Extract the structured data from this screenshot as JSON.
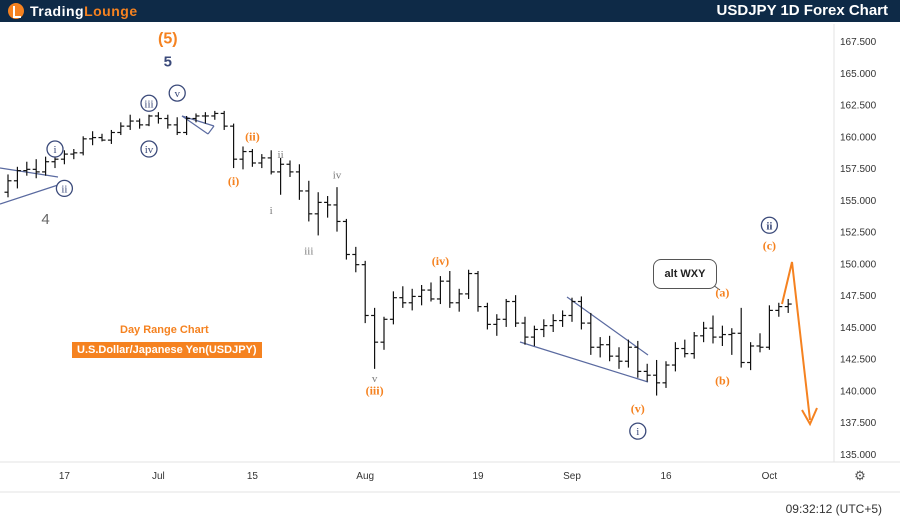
{
  "brand": {
    "name_part1": "Trading",
    "name_part2": "Lounge"
  },
  "title": "USDJPY 1D Forex Chart",
  "captions": {
    "range": "Day Range Chart",
    "instrument": "U.S.Dollar/Japanese Yen(USDJPY)"
  },
  "callout": "alt WXY",
  "clock": "09:32:12 (UTC+5)",
  "colors": {
    "header": "#0e2a47",
    "orange": "#f58220",
    "navy_label": "#3b4a7a",
    "grey_label": "#7a7a7a",
    "price": "#111111"
  },
  "chart_data": {
    "type": "ohlc",
    "y_axis": {
      "min": 135.0,
      "max": 167.5,
      "ticks": [
        "135.000",
        "137.500",
        "140.000",
        "142.500",
        "145.000",
        "147.500",
        "150.000",
        "152.500",
        "155.000",
        "157.500",
        "160.000",
        "162.500",
        "165.000",
        "167.500"
      ]
    },
    "x_axis": {
      "ticks": [
        {
          "label": "17",
          "i": 6
        },
        {
          "label": "Jul",
          "i": 16
        },
        {
          "label": "15",
          "i": 26
        },
        {
          "label": "Aug",
          "i": 38
        },
        {
          "label": "19",
          "i": 50
        },
        {
          "label": "Sep",
          "i": 60
        },
        {
          "label": "16",
          "i": 70
        },
        {
          "label": "Oct",
          "i": 81
        }
      ]
    },
    "bars": [
      [
        155.6,
        157.0,
        155.2,
        156.5
      ],
      [
        156.5,
        157.6,
        155.9,
        157.3
      ],
      [
        157.3,
        158.0,
        156.9,
        157.4
      ],
      [
        157.4,
        158.2,
        156.7,
        157.2
      ],
      [
        157.2,
        158.4,
        156.9,
        158.0
      ],
      [
        158.0,
        158.6,
        157.5,
        158.2
      ],
      [
        158.2,
        158.9,
        157.8,
        158.6
      ],
      [
        158.6,
        159.0,
        158.2,
        158.7
      ],
      [
        158.7,
        160.0,
        158.5,
        159.8
      ],
      [
        159.8,
        160.4,
        159.3,
        159.9
      ],
      [
        159.9,
        160.2,
        159.6,
        159.7
      ],
      [
        159.7,
        160.5,
        159.4,
        160.3
      ],
      [
        160.3,
        161.1,
        160.1,
        160.8
      ],
      [
        160.8,
        161.7,
        160.5,
        161.2
      ],
      [
        161.2,
        161.4,
        160.6,
        160.9
      ],
      [
        160.9,
        161.7,
        160.8,
        161.6
      ],
      [
        161.6,
        161.9,
        161.0,
        161.4
      ],
      [
        161.4,
        161.7,
        160.6,
        160.9
      ],
      [
        160.9,
        161.5,
        160.1,
        160.3
      ],
      [
        160.3,
        161.6,
        160.1,
        161.4
      ],
      [
        161.4,
        161.8,
        161.1,
        161.6
      ],
      [
        161.6,
        161.9,
        161.0,
        161.6
      ],
      [
        161.6,
        162.0,
        161.3,
        161.8
      ],
      [
        161.8,
        162.0,
        160.5,
        160.8
      ],
      [
        160.8,
        161.0,
        157.5,
        158.2
      ],
      [
        158.2,
        159.2,
        157.4,
        158.8
      ],
      [
        158.8,
        159.0,
        157.6,
        157.9
      ],
      [
        157.9,
        158.6,
        157.5,
        158.3
      ],
      [
        158.3,
        158.9,
        157.0,
        157.2
      ],
      [
        157.2,
        158.3,
        155.4,
        157.8
      ],
      [
        157.8,
        158.1,
        156.8,
        157.2
      ],
      [
        157.2,
        157.8,
        155.0,
        155.7
      ],
      [
        155.7,
        156.5,
        153.3,
        153.9
      ],
      [
        153.9,
        155.6,
        152.2,
        154.8
      ],
      [
        154.8,
        155.3,
        153.6,
        154.6
      ],
      [
        154.6,
        156.0,
        152.5,
        153.3
      ],
      [
        153.3,
        153.5,
        150.3,
        150.7
      ],
      [
        150.7,
        151.3,
        149.3,
        149.9
      ],
      [
        149.9,
        150.2,
        145.3,
        145.9
      ],
      [
        145.9,
        146.5,
        141.7,
        143.8
      ],
      [
        143.8,
        145.8,
        143.2,
        145.6
      ],
      [
        145.6,
        147.8,
        145.2,
        147.3
      ],
      [
        147.3,
        148.2,
        146.5,
        146.9
      ],
      [
        146.9,
        148.0,
        146.3,
        147.4
      ],
      [
        147.4,
        148.3,
        146.7,
        147.9
      ],
      [
        147.9,
        148.5,
        147.0,
        147.2
      ],
      [
        147.2,
        149.0,
        146.8,
        148.6
      ],
      [
        148.6,
        149.4,
        146.5,
        146.9
      ],
      [
        146.9,
        148.0,
        146.2,
        147.6
      ],
      [
        147.6,
        149.5,
        147.2,
        149.2
      ],
      [
        149.2,
        149.4,
        146.2,
        146.6
      ],
      [
        146.6,
        146.9,
        144.8,
        145.2
      ],
      [
        145.2,
        146.0,
        144.3,
        145.6
      ],
      [
        145.6,
        147.2,
        145.0,
        147.0
      ],
      [
        147.0,
        147.5,
        145.0,
        145.3
      ],
      [
        145.3,
        145.8,
        143.6,
        144.2
      ],
      [
        144.2,
        145.1,
        143.5,
        144.8
      ],
      [
        144.8,
        145.6,
        144.2,
        145.1
      ],
      [
        145.1,
        146.0,
        144.6,
        145.5
      ],
      [
        145.5,
        146.3,
        145.0,
        145.9
      ],
      [
        145.9,
        147.3,
        145.4,
        147.0
      ],
      [
        147.0,
        147.4,
        144.8,
        145.3
      ],
      [
        145.3,
        146.1,
        142.8,
        143.4
      ],
      [
        143.4,
        144.2,
        142.6,
        143.6
      ],
      [
        143.6,
        144.3,
        142.3,
        142.7
      ],
      [
        142.7,
        143.4,
        141.7,
        142.3
      ],
      [
        142.3,
        144.0,
        141.8,
        143.4
      ],
      [
        143.4,
        143.9,
        141.0,
        141.5
      ],
      [
        141.5,
        142.1,
        140.7,
        141.2
      ],
      [
        141.2,
        142.4,
        139.6,
        140.6
      ],
      [
        140.6,
        142.3,
        140.2,
        142.0
      ],
      [
        142.0,
        143.8,
        141.5,
        143.3
      ],
      [
        143.3,
        144.0,
        142.6,
        142.9
      ],
      [
        142.9,
        144.6,
        142.5,
        144.3
      ],
      [
        144.3,
        145.4,
        143.8,
        144.9
      ],
      [
        144.9,
        145.9,
        143.7,
        144.2
      ],
      [
        144.2,
        145.1,
        143.5,
        144.4
      ],
      [
        144.4,
        144.9,
        142.8,
        144.5
      ],
      [
        144.5,
        146.5,
        141.8,
        142.2
      ],
      [
        142.2,
        143.8,
        141.6,
        143.5
      ],
      [
        143.5,
        144.5,
        143.0,
        143.4
      ],
      [
        143.4,
        146.7,
        143.2,
        146.3
      ],
      [
        146.3,
        146.9,
        145.8,
        146.6
      ],
      [
        146.6,
        147.2,
        146.1,
        146.8
      ]
    ],
    "labels": [
      {
        "text": "(5)",
        "i": 17,
        "y": 167.6,
        "style": "orange-bold"
      },
      {
        "text": "5",
        "i": 17,
        "y": 165.8,
        "style": "navy-bold"
      },
      {
        "text": "iii",
        "i": 15,
        "y": 162.6,
        "style": "circle"
      },
      {
        "text": "v",
        "i": 18,
        "y": 163.4,
        "style": "circle"
      },
      {
        "text": "iv",
        "i": 15,
        "y": 159.0,
        "style": "circle"
      },
      {
        "text": "i",
        "i": 5,
        "y": 159.0,
        "style": "circle"
      },
      {
        "text": "ii",
        "i": 6,
        "y": 155.9,
        "style": "circle"
      },
      {
        "text": "4",
        "i": 4,
        "y": 153.4,
        "style": "grey"
      },
      {
        "text": "(ii)",
        "i": 26,
        "y": 160.0,
        "style": "orange"
      },
      {
        "text": "(i)",
        "i": 24,
        "y": 156.5,
        "style": "orange"
      },
      {
        "text": "ii",
        "i": 29,
        "y": 158.6,
        "style": "grey-small"
      },
      {
        "text": "i",
        "i": 28,
        "y": 154.2,
        "style": "grey-small"
      },
      {
        "text": "iv",
        "i": 35,
        "y": 157.0,
        "style": "grey-small"
      },
      {
        "text": "iii",
        "i": 32,
        "y": 151.0,
        "style": "grey-small"
      },
      {
        "text": "(iv)",
        "i": 46,
        "y": 150.2,
        "style": "orange"
      },
      {
        "text": "v",
        "i": 39,
        "y": 141.0,
        "style": "grey-small"
      },
      {
        "text": "(iii)",
        "i": 39,
        "y": 140.0,
        "style": "orange"
      },
      {
        "text": "(v)",
        "i": 67,
        "y": 138.6,
        "style": "orange"
      },
      {
        "text": "i",
        "i": 67,
        "y": 136.8,
        "style": "circle"
      },
      {
        "text": "(a)",
        "i": 76,
        "y": 147.7,
        "style": "orange"
      },
      {
        "text": "(b)",
        "i": 76,
        "y": 140.8,
        "style": "orange"
      },
      {
        "text": "ii",
        "i": 81,
        "y": 153.0,
        "style": "circle-bold"
      },
      {
        "text": "(c)",
        "i": 81,
        "y": 151.4,
        "style": "orange"
      }
    ]
  }
}
